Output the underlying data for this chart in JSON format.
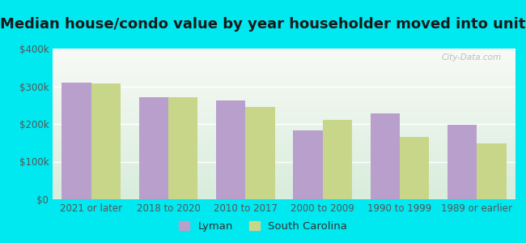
{
  "title": "Median house/condo value by year householder moved into unit",
  "categories": [
    "2021 or later",
    "2018 to 2020",
    "2010 to 2017",
    "2000 to 2009",
    "1990 to 1999",
    "1989 or earlier"
  ],
  "lyman_values": [
    310000,
    272000,
    263000,
    182000,
    228000,
    198000
  ],
  "sc_values": [
    308000,
    270000,
    245000,
    210000,
    165000,
    148000
  ],
  "lyman_color": "#b89fcc",
  "sc_color": "#c8d68a",
  "background_outer": "#00e8f0",
  "background_inner_top": "#f5f5f0",
  "background_inner_bottom": "#d8eddc",
  "ylim": [
    0,
    400000
  ],
  "yticks": [
    0,
    100000,
    200000,
    300000,
    400000
  ],
  "ytick_labels": [
    "$0",
    "$100k",
    "$200k",
    "$300k",
    "$400k"
  ],
  "watermark": "City-Data.com",
  "legend_lyman": "Lyman",
  "legend_sc": "South Carolina",
  "title_fontsize": 13,
  "tick_fontsize": 8.5,
  "legend_fontsize": 9.5
}
